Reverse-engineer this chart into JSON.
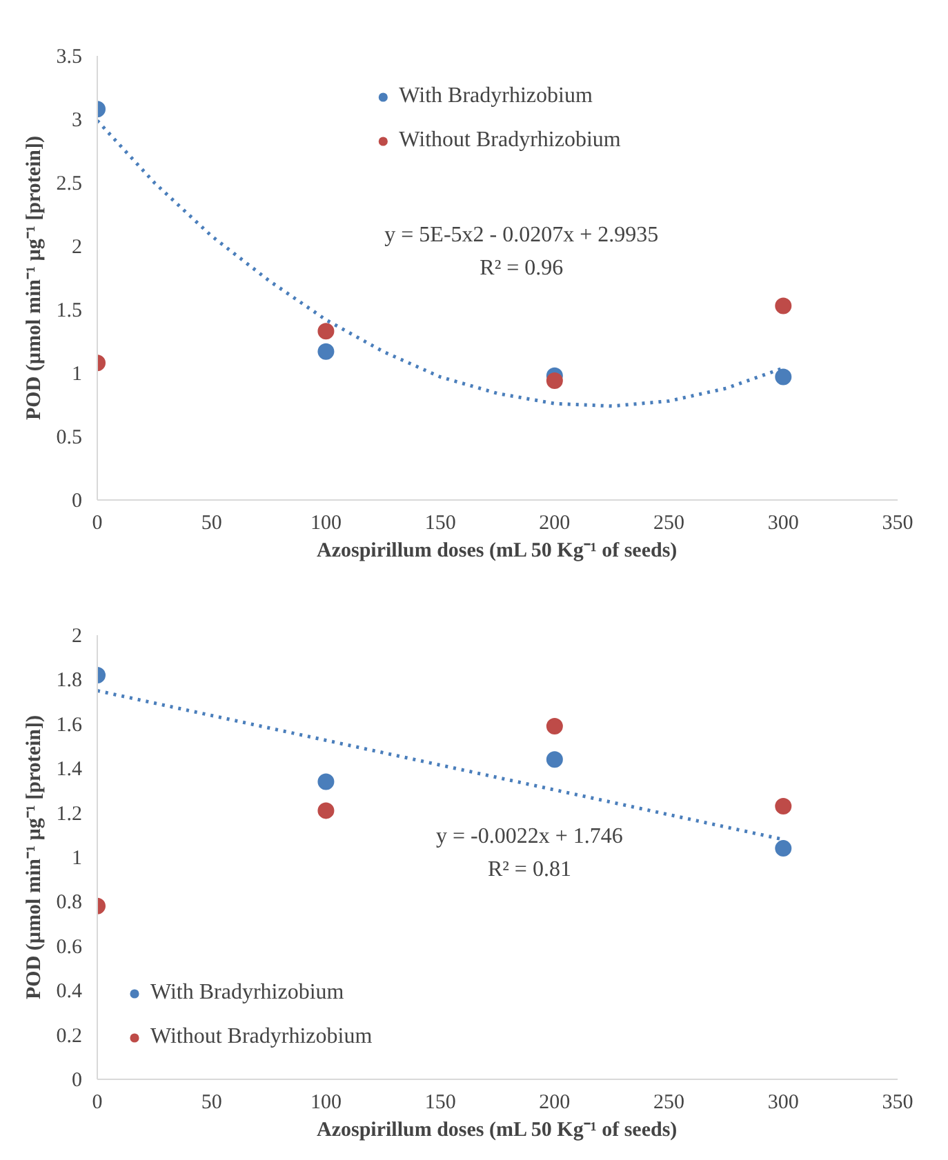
{
  "chart_data": [
    {
      "type": "scatter",
      "xlabel": "Azospirillum doses (mL 50 Kg⁻¹ of seeds)",
      "ylabel": "POD (µmol min⁻¹ µg⁻¹ [protein])",
      "x": [
        0,
        100,
        200,
        300
      ],
      "xlim": [
        0,
        350
      ],
      "xticks": [
        0,
        50,
        100,
        150,
        200,
        250,
        300,
        350
      ],
      "ylim": [
        0,
        3.5
      ],
      "yticks": [
        0,
        0.5,
        1,
        1.5,
        2,
        2.5,
        3,
        3.5
      ],
      "grid": false,
      "legend": "top",
      "marker": "circle",
      "series": [
        {
          "name": "With Bradyrhizobium",
          "color": "#4a7ebb",
          "values": [
            3.08,
            1.17,
            0.98,
            0.97
          ]
        },
        {
          "name": "Without Bradyrhizobium",
          "color": "#be4b48",
          "values": [
            1.08,
            1.33,
            0.94,
            1.53
          ]
        },
        {
          "type": "line",
          "marker": "none",
          "line_style": "dotted",
          "color": "#4a7ebb",
          "x": [
            0,
            25,
            50,
            75,
            100,
            125,
            150,
            175,
            200,
            225,
            250,
            275,
            300
          ],
          "values": [
            2.99,
            2.5,
            2.08,
            1.73,
            1.42,
            1.17,
            0.97,
            0.84,
            0.76,
            0.74,
            0.78,
            0.88,
            1.04
          ]
        }
      ],
      "annotations": [
        "y = 5E-5x2 - 0.0207x + 2.9935",
        "R² = 0.96"
      ]
    },
    {
      "type": "scatter",
      "xlabel": "Azospirillum doses (mL 50 Kg⁻¹ of seeds)",
      "ylabel": "POD (µmol min⁻¹ µg⁻¹ [protein])",
      "x": [
        0,
        100,
        200,
        300
      ],
      "xlim": [
        0,
        350
      ],
      "xticks": [
        0,
        50,
        100,
        150,
        200,
        250,
        300,
        350
      ],
      "ylim": [
        0,
        2
      ],
      "yticks": [
        0,
        0.2,
        0.4,
        0.6,
        0.8,
        1,
        1.2,
        1.4,
        1.6,
        1.8,
        2
      ],
      "grid": false,
      "legend": "bottom left",
      "marker": "circle",
      "series": [
        {
          "name": "With Bradyrhizobium",
          "color": "#4a7ebb",
          "values": [
            1.82,
            1.34,
            1.44,
            1.04
          ]
        },
        {
          "name": "Without Bradyrhizobium",
          "color": "#be4b48",
          "values": [
            0.78,
            1.21,
            1.59,
            1.23
          ]
        },
        {
          "type": "line",
          "marker": "none",
          "line_style": "dotted",
          "color": "#4a7ebb",
          "x": [
            0,
            300
          ],
          "values": [
            1.75,
            1.08
          ]
        }
      ],
      "annotations": [
        "y = -0.0022x + 1.746",
        "R² = 0.81"
      ]
    }
  ]
}
